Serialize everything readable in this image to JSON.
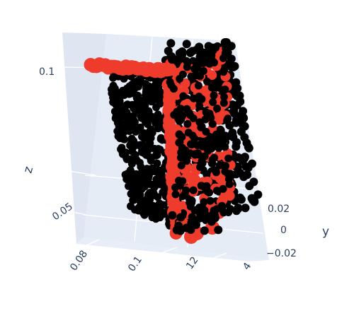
{
  "chart_data": {
    "type": "scatter",
    "dimensions": 3,
    "axes": {
      "x": {
        "label": "",
        "tick_labels": [
          "0.08",
          "0.1",
          "12",
          "4"
        ]
      },
      "y": {
        "label": "y",
        "tick_labels": [
          "0.02",
          "0",
          "−0.02"
        ]
      },
      "z": {
        "label": "z",
        "tick_labels": [
          "0.1",
          "0.05"
        ]
      }
    },
    "grid": true,
    "scene_background": "#e5ecf6",
    "series": [
      {
        "color": "#000000",
        "marker": "circle"
      },
      {
        "color": "#ef3b2c",
        "marker": "circle"
      }
    ]
  }
}
